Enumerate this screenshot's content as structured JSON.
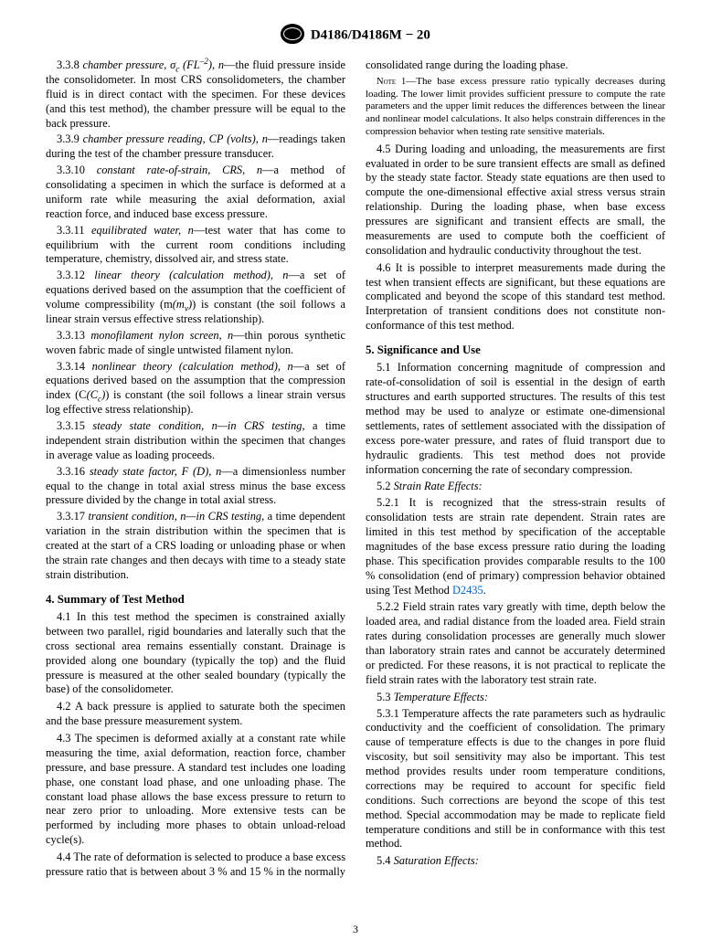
{
  "header": {
    "designation": "D4186/D4186M − 20"
  },
  "left": {
    "d338": {
      "num": "3.3.8",
      "term": "chamber pressure, σ",
      "sub": "c",
      "dim": "(FL",
      "sup": "–2",
      "dim2": "), n",
      "text": "—the fluid pressure inside the consolidometer. In most CRS consolidometers, the chamber fluid is in direct contact with the specimen. For these devices (and this test method), the chamber pressure will be equal to the back pressure."
    },
    "d339": {
      "num": "3.3.9",
      "term": "chamber pressure reading, CP (volts), n",
      "text": "—readings taken during the test of the chamber pressure transducer."
    },
    "d3310": {
      "num": "3.3.10",
      "term": "constant rate-of-strain, CRS, n",
      "text": "—a method of consolidating a specimen in which the surface is deformed at a uniform rate while measuring the axial deformation, axial reaction force, and induced base excess pressure."
    },
    "d3311": {
      "num": "3.3.11",
      "term": "equilibrated water, n",
      "text": "—test water that has come to equilibrium with the current room conditions including temperature, chemistry, dissolved air, and stress state."
    },
    "d3312": {
      "num": "3.3.12",
      "term": "linear theory (calculation method), n",
      "text": "—a set of equations derived based on the assumption that the coefficient of volume compressibility (m",
      "sub": "v",
      "text2": ") is constant (the soil follows a linear strain versus effective stress relationship)."
    },
    "d3313": {
      "num": "3.3.13",
      "term": "monofilament nylon screen, n",
      "text": "—thin porous synthetic woven fabric made of single untwisted filament nylon."
    },
    "d3314": {
      "num": "3.3.14",
      "term": "nonlinear theory (calculation method), n",
      "text": "—a set of equations derived based on the assumption that the compression index (C",
      "sub": "c",
      "text2": ") is constant (the soil follows a linear strain versus log effective stress relationship)."
    },
    "d3315": {
      "num": "3.3.15",
      "term": "steady state condition, n—in CRS testing",
      "text": ", a time independent strain distribution within the specimen that changes in average value as loading proceeds."
    },
    "d3316": {
      "num": "3.3.16",
      "term": "steady state factor, F (D), n",
      "text": "—a dimensionless number equal to the change in total axial stress minus the base excess pressure divided by the change in total axial stress."
    },
    "d3317": {
      "num": "3.3.17",
      "term": "transient condition, n—in CRS testing",
      "text": ", a time dependent variation in the strain distribution within the specimen that is created at the start of a CRS loading or unloading phase or when the strain rate changes and then decays with time to a steady state strain distribution."
    },
    "sec4": "4. Summary of Test Method",
    "p41": {
      "num": "4.1",
      "text": "In this test method the specimen is constrained axially between two parallel, rigid boundaries and laterally such that the cross sectional area remains essentially constant. Drainage is provided along one boundary (typically the top) and the fluid pressure is measured at the other sealed boundary (typically the base) of the consolidometer."
    },
    "p42": {
      "num": "4.2",
      "text": "A back pressure is applied to saturate both the specimen and the base pressure measurement system."
    },
    "p43": {
      "num": "4.3",
      "text": "The specimen is deformed axially at a constant rate while measuring the time, axial deformation, reaction force, chamber pressure, and base pressure. A standard test includes one loading phase, one constant load phase, and one unloading phase. The constant load phase allows the base excess pressure to return to near zero prior to unloading. More extensive tests can be performed by including more phases to obtain unload-reload cycle(s)."
    },
    "p44": {
      "num": "4.4",
      "text": "The rate of deformation is selected to produce a base excess pressure ratio that is between about 3 % and 15 % in the normally consolidated range during the loading phase."
    }
  },
  "right": {
    "note1": {
      "label": "Note 1",
      "text": "—The base excess pressure ratio typically decreases during loading. The lower limit provides sufficient pressure to compute the rate parameters and the upper limit reduces the differences between the linear and nonlinear model calculations. It also helps constrain differences in the compression behavior when testing rate sensitive materials."
    },
    "p45": {
      "num": "4.5",
      "text": "During loading and unloading, the measurements are first evaluated in order to be sure transient effects are small as defined by the steady state factor. Steady state equations are then used to compute the one-dimensional effective axial stress versus strain relationship. During the loading phase, when base excess pressures are significant and transient effects are small, the measurements are used to compute both the coefficient of consolidation and hydraulic conductivity throughout the test."
    },
    "p46": {
      "num": "4.6",
      "text": "It is possible to interpret measurements made during the test when transient effects are significant, but these equations are complicated and beyond the scope of this standard test method. Interpretation of transient conditions does not constitute non-conformance of this test method."
    },
    "sec5": "5. Significance and Use",
    "p51": {
      "num": "5.1",
      "text": "Information concerning magnitude of compression and rate-of-consolidation of soil is essential in the design of earth structures and earth supported structures. The results of this test method may be used to analyze or estimate one-dimensional settlements, rates of settlement associated with the dissipation of excess pore-water pressure, and rates of fluid transport due to hydraulic gradients. This test method does not provide information concerning the rate of secondary compression."
    },
    "h52": {
      "num": "5.2",
      "title": "Strain Rate Effects:"
    },
    "p521": {
      "num": "5.2.1",
      "text": "It is recognized that the stress-strain results of consolidation tests are strain rate dependent. Strain rates are limited in this test method by specification of the acceptable magnitudes of the base excess pressure ratio during the loading phase. This specification provides comparable results to the 100 % consolidation (end of primary) compression behavior obtained using Test Method ",
      "link": "D2435",
      "text2": "."
    },
    "p522": {
      "num": "5.2.2",
      "text": "Field strain rates vary greatly with time, depth below the loaded area, and radial distance from the loaded area. Field strain rates during consolidation processes are generally much slower than laboratory strain rates and cannot be accurately determined or predicted. For these reasons, it is not practical to replicate the field strain rates with the laboratory test strain rate."
    },
    "h53": {
      "num": "5.3",
      "title": "Temperature Effects:"
    },
    "p531": {
      "num": "5.3.1",
      "text": "Temperature affects the rate parameters such as hydraulic conductivity and the coefficient of consolidation. The primary cause of temperature effects is due to the changes in pore fluid viscosity, but soil sensitivity may also be important. This test method provides results under room temperature conditions, corrections may be required to account for specific field conditions. Such corrections are beyond the scope of this test method. Special accommodation may be made to replicate field temperature conditions and still be in conformance with this test method."
    },
    "h54": {
      "num": "5.4",
      "title": "Saturation Effects:"
    }
  },
  "pagenum": "3"
}
